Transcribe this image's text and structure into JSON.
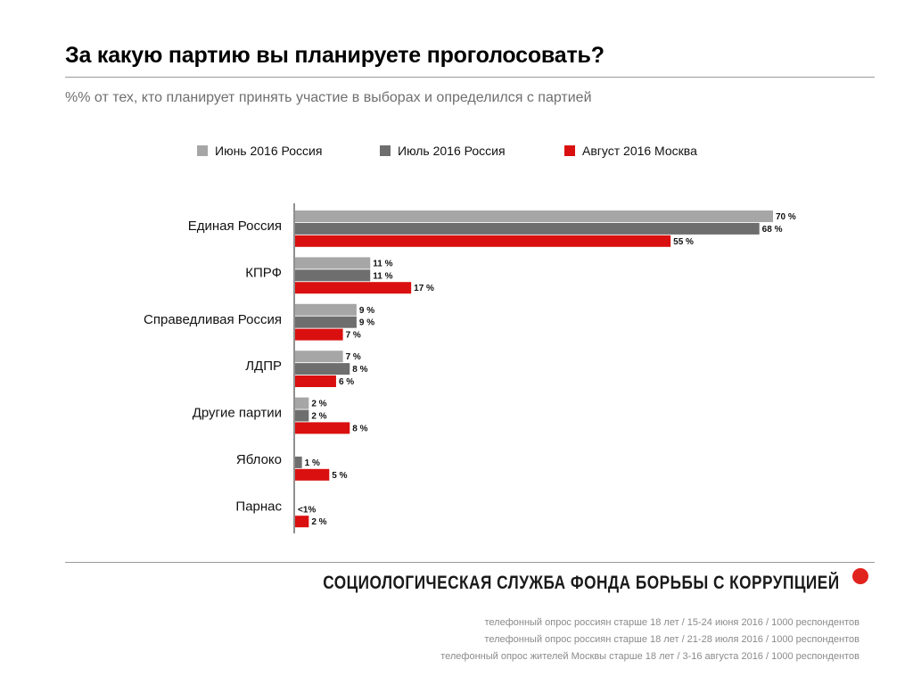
{
  "header": {
    "title": "За какую партию вы планируете проголосовать?",
    "subtitle": "%% от тех, кто планирует принять участие в выборах и определился с партией"
  },
  "legend": [
    {
      "label": "Июнь 2016 Россия",
      "color": "#a6a6a6"
    },
    {
      "label": "Июль 2016 Россия",
      "color": "#6e6e6e"
    },
    {
      "label": "Август 2016 Москва",
      "color": "#d9100f"
    }
  ],
  "chart_data": {
    "type": "bar",
    "orientation": "horizontal",
    "categories": [
      "Единая Россия",
      "КПРФ",
      "Справедливая Россия",
      "ЛДПР",
      "Другие партии",
      "Яблоко",
      "Парнас"
    ],
    "series": [
      {
        "name": "Июнь 2016 Россия",
        "color": "#a6a6a6",
        "values": [
          70,
          11,
          9,
          7,
          2,
          null,
          null
        ],
        "labels": [
          "70 %",
          "11 %",
          "9 %",
          "7 %",
          "2 %",
          "",
          ""
        ]
      },
      {
        "name": "Июль 2016 Россия",
        "color": "#6e6e6e",
        "values": [
          68,
          11,
          9,
          8,
          2,
          1,
          0.5
        ],
        "labels": [
          "68 %",
          "11 %",
          "9 %",
          "8 %",
          "2 %",
          "1 %",
          "<1%"
        ]
      },
      {
        "name": "Август 2016 Москва",
        "color": "#d9100f",
        "values": [
          55,
          17,
          7,
          6,
          8,
          5,
          2
        ],
        "labels": [
          "55 %",
          "17 %",
          "7 %",
          "6 %",
          "8 %",
          "5 %",
          "2 %"
        ]
      }
    ],
    "xlim": [
      0,
      70
    ],
    "grid": false,
    "legend_position": "top"
  },
  "footer": {
    "organization": "СОЦИОЛОГИЧЕСКАЯ СЛУЖБА ФОНДА БОРЬБЫ С КОРРУПЦИЕЙ",
    "notes": [
      "телефонный опрос россиян старше 18 лет / 15-24 июня 2016 / 1000 респондентов",
      "телефонный опрос россиян старше 18 лет / 21-28 июля 2016 / 1000 респондентов",
      "телефонный опрос жителей Москвы старше 18 лет / 3-16 августа 2016 / 1000 респондентов"
    ]
  }
}
